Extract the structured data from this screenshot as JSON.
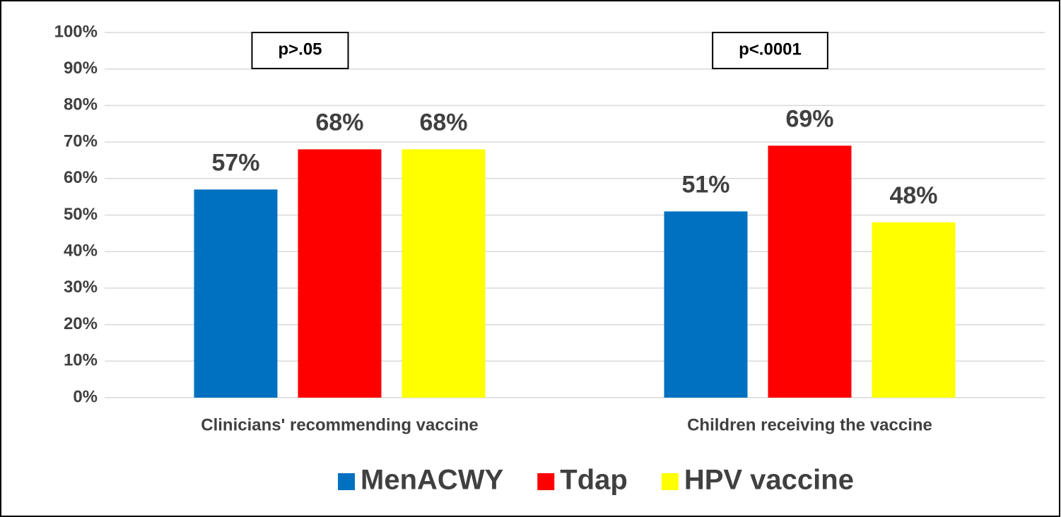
{
  "chart_data": {
    "type": "bar",
    "categories": [
      "Clinicians' recommending vaccine",
      "Children receiving the vaccine"
    ],
    "series": [
      {
        "name": "MenACWY",
        "color": "#0070c0",
        "values": [
          57,
          51
        ],
        "value_labels": [
          "57%",
          "51%"
        ]
      },
      {
        "name": "Tdap",
        "color": "#ff0000",
        "values": [
          68,
          69
        ],
        "value_labels": [
          "68%",
          "69%"
        ]
      },
      {
        "name": "HPV vaccine",
        "color": "#ffff00",
        "values": [
          68,
          48
        ],
        "value_labels": [
          "68%",
          "48%"
        ]
      }
    ],
    "annotations": [
      "p>.05",
      "p<.0001"
    ],
    "ylim": [
      0,
      100
    ],
    "yticks": [
      {
        "value": 0,
        "label": "0%"
      },
      {
        "value": 10,
        "label": "10%"
      },
      {
        "value": 20,
        "label": "20%"
      },
      {
        "value": 30,
        "label": "30%"
      },
      {
        "value": 40,
        "label": "40%"
      },
      {
        "value": 50,
        "label": "50%"
      },
      {
        "value": 60,
        "label": "60%"
      },
      {
        "value": 70,
        "label": "70%"
      },
      {
        "value": 80,
        "label": "80%"
      },
      {
        "value": 90,
        "label": "90%"
      },
      {
        "value": 100,
        "label": "100%"
      }
    ],
    "grid": true,
    "legend": "bottom"
  }
}
